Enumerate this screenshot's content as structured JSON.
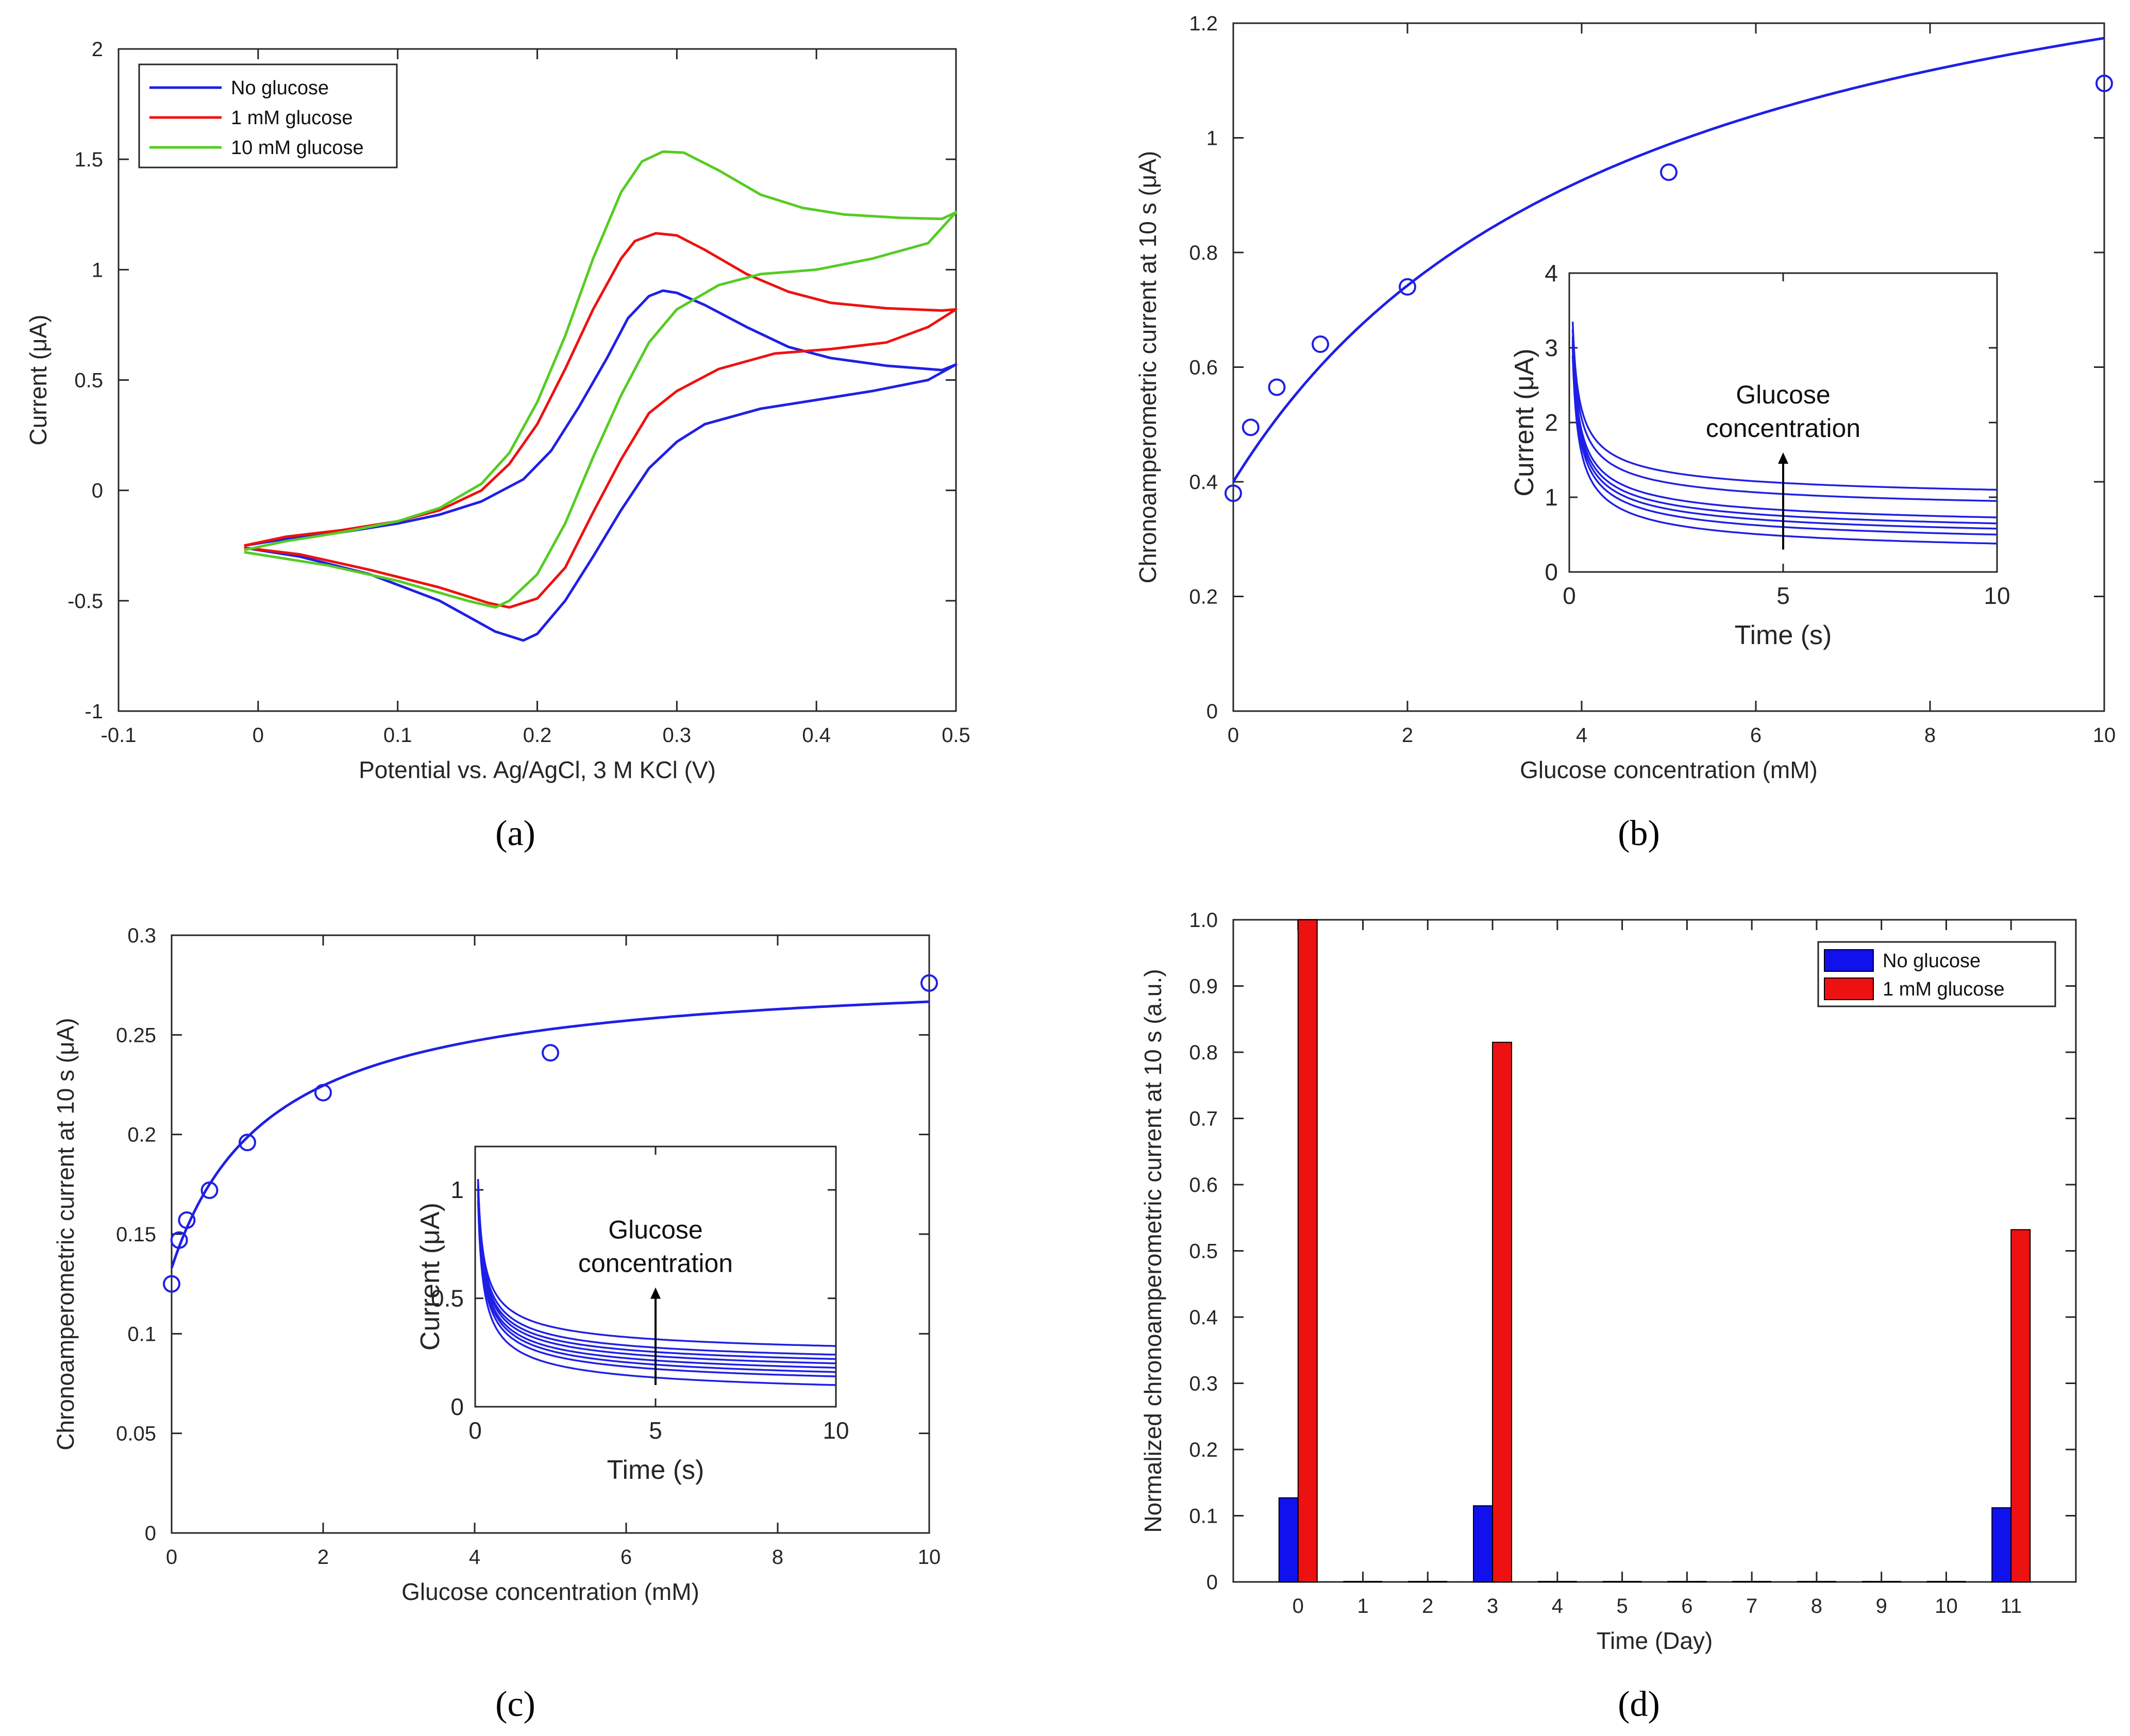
{
  "colors": {
    "blue": "#1f1fe6",
    "red": "#ee1111",
    "green": "#55cc22",
    "axis": "#262626"
  },
  "panels": {
    "a": {
      "label": "(a)"
    },
    "b": {
      "label": "(b)"
    },
    "c": {
      "label": "(c)"
    },
    "d": {
      "label": "(d)"
    }
  },
  "chart_data": [
    {
      "id": "a",
      "type": "line",
      "xlabel": "Potential vs. Ag/AgCl, 3 M KCl (V)",
      "ylabel": "Current (μA)",
      "xlim": [
        -0.1,
        0.5
      ],
      "ylim": [
        -1,
        2
      ],
      "xticks": [
        -0.1,
        0,
        0.1,
        0.2,
        0.3,
        0.4,
        0.5
      ],
      "xtick_labels": [
        "-0.1",
        "0",
        "0.1",
        "0.2",
        "0.3",
        "0.4",
        "0.5"
      ],
      "yticks": [
        -1,
        -0.5,
        0,
        0.5,
        1,
        1.5,
        2
      ],
      "ytick_labels": [
        "-1",
        "-0.5",
        "0",
        "0.5",
        "1",
        "1.5",
        "2"
      ],
      "legend_position": "top-left",
      "series": [
        {
          "name": "No glucose",
          "color": "#1f1fe6",
          "points": [
            [
              -0.01,
              -0.25
            ],
            [
              0.02,
              -0.22
            ],
            [
              0.06,
              -0.19
            ],
            [
              0.1,
              -0.15
            ],
            [
              0.13,
              -0.11
            ],
            [
              0.16,
              -0.05
            ],
            [
              0.19,
              0.05
            ],
            [
              0.21,
              0.18
            ],
            [
              0.23,
              0.38
            ],
            [
              0.25,
              0.6
            ],
            [
              0.265,
              0.78
            ],
            [
              0.28,
              0.88
            ],
            [
              0.29,
              0.905
            ],
            [
              0.3,
              0.895
            ],
            [
              0.32,
              0.84
            ],
            [
              0.35,
              0.74
            ],
            [
              0.38,
              0.65
            ],
            [
              0.41,
              0.6
            ],
            [
              0.45,
              0.565
            ],
            [
              0.49,
              0.545
            ],
            [
              0.5,
              0.57
            ],
            [
              0.48,
              0.5
            ],
            [
              0.44,
              0.45
            ],
            [
              0.4,
              0.41
            ],
            [
              0.36,
              0.37
            ],
            [
              0.32,
              0.3
            ],
            [
              0.3,
              0.22
            ],
            [
              0.28,
              0.1
            ],
            [
              0.26,
              -0.09
            ],
            [
              0.24,
              -0.3
            ],
            [
              0.22,
              -0.5
            ],
            [
              0.2,
              -0.65
            ],
            [
              0.19,
              -0.68
            ],
            [
              0.17,
              -0.64
            ],
            [
              0.13,
              -0.5
            ],
            [
              0.08,
              -0.38
            ],
            [
              0.03,
              -0.3
            ],
            [
              -0.01,
              -0.26
            ]
          ]
        },
        {
          "name": "1 mM glucose",
          "color": "#ee1111",
          "points": [
            [
              -0.01,
              -0.25
            ],
            [
              0.02,
              -0.21
            ],
            [
              0.06,
              -0.18
            ],
            [
              0.1,
              -0.14
            ],
            [
              0.13,
              -0.09
            ],
            [
              0.16,
              0.0
            ],
            [
              0.18,
              0.12
            ],
            [
              0.2,
              0.3
            ],
            [
              0.22,
              0.55
            ],
            [
              0.24,
              0.82
            ],
            [
              0.26,
              1.05
            ],
            [
              0.27,
              1.13
            ],
            [
              0.285,
              1.165
            ],
            [
              0.3,
              1.155
            ],
            [
              0.32,
              1.09
            ],
            [
              0.35,
              0.98
            ],
            [
              0.38,
              0.9
            ],
            [
              0.41,
              0.85
            ],
            [
              0.45,
              0.825
            ],
            [
              0.49,
              0.815
            ],
            [
              0.5,
              0.82
            ],
            [
              0.48,
              0.74
            ],
            [
              0.45,
              0.67
            ],
            [
              0.41,
              0.64
            ],
            [
              0.37,
              0.62
            ],
            [
              0.33,
              0.55
            ],
            [
              0.3,
              0.45
            ],
            [
              0.28,
              0.35
            ],
            [
              0.26,
              0.14
            ],
            [
              0.24,
              -0.1
            ],
            [
              0.22,
              -0.35
            ],
            [
              0.2,
              -0.49
            ],
            [
              0.18,
              -0.53
            ],
            [
              0.165,
              -0.51
            ],
            [
              0.13,
              -0.44
            ],
            [
              0.08,
              -0.36
            ],
            [
              0.03,
              -0.29
            ],
            [
              -0.01,
              -0.26
            ]
          ]
        },
        {
          "name": "10 mM glucose",
          "color": "#55cc22",
          "points": [
            [
              -0.01,
              -0.27
            ],
            [
              0.02,
              -0.23
            ],
            [
              0.06,
              -0.19
            ],
            [
              0.1,
              -0.14
            ],
            [
              0.13,
              -0.08
            ],
            [
              0.16,
              0.03
            ],
            [
              0.18,
              0.17
            ],
            [
              0.2,
              0.4
            ],
            [
              0.22,
              0.7
            ],
            [
              0.24,
              1.05
            ],
            [
              0.26,
              1.35
            ],
            [
              0.275,
              1.49
            ],
            [
              0.29,
              1.535
            ],
            [
              0.305,
              1.53
            ],
            [
              0.33,
              1.45
            ],
            [
              0.36,
              1.34
            ],
            [
              0.39,
              1.28
            ],
            [
              0.42,
              1.25
            ],
            [
              0.46,
              1.235
            ],
            [
              0.49,
              1.23
            ],
            [
              0.5,
              1.26
            ],
            [
              0.48,
              1.12
            ],
            [
              0.44,
              1.05
            ],
            [
              0.4,
              1.0
            ],
            [
              0.36,
              0.98
            ],
            [
              0.33,
              0.93
            ],
            [
              0.3,
              0.82
            ],
            [
              0.28,
              0.67
            ],
            [
              0.26,
              0.43
            ],
            [
              0.24,
              0.15
            ],
            [
              0.22,
              -0.15
            ],
            [
              0.2,
              -0.38
            ],
            [
              0.18,
              -0.5
            ],
            [
              0.17,
              -0.53
            ],
            [
              0.15,
              -0.5
            ],
            [
              0.1,
              -0.41
            ],
            [
              0.05,
              -0.34
            ],
            [
              -0.01,
              -0.28
            ]
          ]
        }
      ]
    },
    {
      "id": "b",
      "type": "scatter",
      "xlabel": "Glucose concentration (mM)",
      "ylabel": "Chronoamperometric current at 10 s (μA)",
      "xlim": [
        0,
        10
      ],
      "ylim": [
        0,
        1.2
      ],
      "xticks": [
        0,
        2,
        4,
        6,
        8,
        10
      ],
      "xtick_labels": [
        "0",
        "2",
        "4",
        "6",
        "8",
        "10"
      ],
      "yticks": [
        0,
        0.2,
        0.4,
        0.6,
        0.8,
        1,
        1.2
      ],
      "ytick_labels": [
        "0",
        "0.2",
        "0.4",
        "0.6",
        "0.8",
        "1",
        "1.2"
      ],
      "points": [
        [
          0,
          0.38
        ],
        [
          0.2,
          0.495
        ],
        [
          0.5,
          0.565
        ],
        [
          1,
          0.64
        ],
        [
          2,
          0.74
        ],
        [
          5,
          0.94
        ],
        [
          10,
          1.095
        ]
      ],
      "fit": {
        "color": "#1f1fe6",
        "ymin": 0.4,
        "vmax": 1.13,
        "km": 4.6
      },
      "inset": {
        "xlabel": "Time (s)",
        "ylabel": "Current (μA)",
        "xlim": [
          0,
          10
        ],
        "ylim": [
          0,
          4
        ],
        "xticks": [
          0,
          5,
          10
        ],
        "xtick_labels": [
          "0",
          "5",
          "10"
        ],
        "yticks": [
          0,
          1,
          2,
          3,
          4
        ],
        "ytick_labels": [
          "0",
          "1",
          "2",
          "3",
          "4"
        ],
        "annotation_line1": "Glucose",
        "annotation_line2": "concentration",
        "arrow": {
          "x": 5,
          "y_from": 0.3,
          "y_to": 1.6
        },
        "curves_end_values": [
          0.38,
          0.5,
          0.58,
          0.65,
          0.73,
          0.95,
          1.1
        ],
        "curves_start_values": [
          2.9,
          3.0,
          3.05,
          3.1,
          3.15,
          3.25,
          3.35
        ]
      }
    },
    {
      "id": "c",
      "type": "scatter",
      "xlabel": "Glucose concentration (mM)",
      "ylabel": "Chronoamperometric current at 10 s (μA)",
      "xlim": [
        0,
        10
      ],
      "ylim": [
        0,
        0.3
      ],
      "xticks": [
        0,
        2,
        4,
        6,
        8,
        10
      ],
      "xtick_labels": [
        "0",
        "2",
        "4",
        "6",
        "8",
        "10"
      ],
      "yticks": [
        0,
        0.05,
        0.1,
        0.15,
        0.2,
        0.25,
        0.3
      ],
      "ytick_labels": [
        "0",
        "0.05",
        "0.1",
        "0.15",
        "0.2",
        "0.25",
        "0.3"
      ],
      "points": [
        [
          0,
          0.125
        ],
        [
          0.1,
          0.147
        ],
        [
          0.2,
          0.157
        ],
        [
          0.5,
          0.172
        ],
        [
          1,
          0.196
        ],
        [
          2,
          0.221
        ],
        [
          5,
          0.241
        ],
        [
          10,
          0.276
        ]
      ],
      "fit": {
        "color": "#1f1fe6",
        "ymin": 0.133,
        "vmax": 0.151,
        "km": 1.3
      },
      "inset": {
        "xlabel": "Time (s)",
        "ylabel": "Current (μA)",
        "xlim": [
          0,
          10
        ],
        "ylim": [
          0,
          1.2
        ],
        "xticks": [
          0,
          5,
          10
        ],
        "xtick_labels": [
          "0",
          "5",
          "10"
        ],
        "yticks": [
          0,
          0.5,
          1
        ],
        "ytick_labels": [
          "0",
          "0.5",
          "1"
        ],
        "annotation_line1": "Glucose",
        "annotation_line2": "concentration",
        "arrow": {
          "x": 5,
          "y_from": 0.1,
          "y_to": 0.55
        },
        "curves_end_values": [
          0.1,
          0.14,
          0.16,
          0.18,
          0.2,
          0.22,
          0.24,
          0.28
        ],
        "curves_start_values": [
          0.95,
          0.98,
          1.0,
          1.0,
          1.02,
          1.02,
          1.04,
          1.05
        ]
      }
    },
    {
      "id": "d",
      "type": "bar",
      "xlabel": "Time (Day)",
      "ylabel": "Normalized chronoamperometric current at 10 s (a.u.)",
      "ylim": [
        0,
        1
      ],
      "categories": [
        "0",
        "1",
        "2",
        "3",
        "4",
        "5",
        "6",
        "7",
        "8",
        "9",
        "10",
        "11"
      ],
      "yticks": [
        0,
        0.1,
        0.2,
        0.3,
        0.4,
        0.5,
        0.6,
        0.7,
        0.8,
        0.9,
        1.0
      ],
      "ytick_labels": [
        "0",
        "0.1",
        "0.2",
        "0.3",
        "0.4",
        "0.5",
        "0.6",
        "0.7",
        "0.8",
        "0.9",
        "1.0"
      ],
      "legend_position": "top-right",
      "series": [
        {
          "name": "No glucose",
          "color": "#1111ee",
          "values": [
            0.127,
            0,
            0,
            0.115,
            0,
            0,
            0,
            0,
            0,
            0,
            0,
            0.112
          ]
        },
        {
          "name": "1 mM glucose",
          "color": "#ee1111",
          "values": [
            1.0,
            0,
            0,
            0.815,
            0,
            0,
            0,
            0,
            0,
            0,
            0,
            0.532
          ]
        }
      ]
    }
  ]
}
